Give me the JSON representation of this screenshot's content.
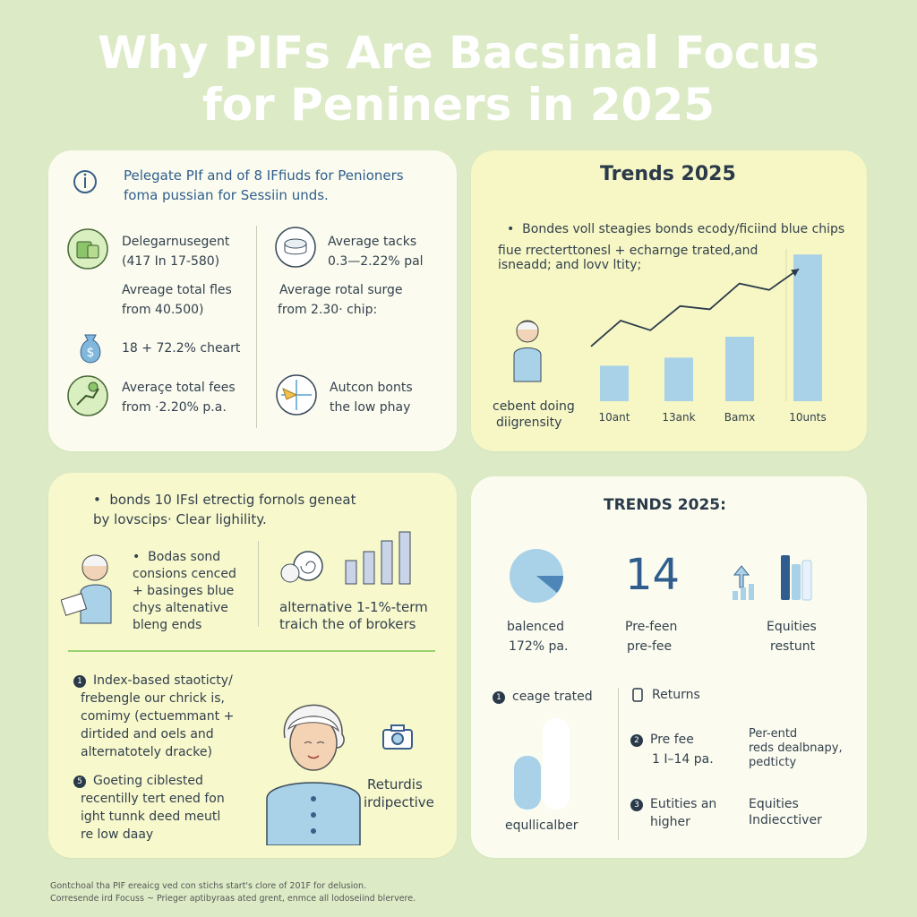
{
  "title": {
    "line1": "Why PIFs Are Bacsinal Focus",
    "line2": "for Peniners in 2025"
  },
  "card1": {
    "intro_line1": "Pelegate PIf and of 8 IFfiuds for Penioners",
    "intro_line2": "foma pussian for Sessiin unds.",
    "left": {
      "item1_line1": "Delegarnusegent",
      "item1_line2": "(417 In 17-580)",
      "item2_line1": "Avreage total fles",
      "item2_line2": "from 40.500)",
      "item3_line1": "18 + 72.2% cheart",
      "item4_line1": "Averaçe total fees",
      "item4_line2": "from ·2.20% p.a."
    },
    "right": {
      "item1_line1": "Average tacks",
      "item1_line2": "0.3—2.22% pal",
      "item2_line1": "Average rotal surge",
      "item2_line2": "from 2.30· chip:",
      "item3_line1": "Autcon bonts",
      "item3_line2": "the low phay"
    }
  },
  "card2": {
    "title": "Trends 2025",
    "bullet": "Bondes voll steagies bonds ecody/ficiind blue chips",
    "line2": "fiue rrecterttonesl +   echarnge trated,and",
    "line3": "isneadd; and lovv ltity;",
    "person_line1": "cebent doing",
    "person_line2": "diigrensity",
    "accent_color": "#a9d1e8",
    "line_color": "#2b3a4a"
  },
  "chart_data": {
    "type": "bar",
    "categories": [
      "10ant",
      "13ank",
      "Bamx",
      "10unts"
    ],
    "values": [
      22,
      27,
      40,
      91
    ],
    "ylim": [
      0,
      100
    ],
    "trend_line": [
      {
        "x": 0,
        "y": 34
      },
      {
        "x": 1,
        "y": 50
      },
      {
        "x": 2,
        "y": 44
      },
      {
        "x": 3,
        "y": 59
      },
      {
        "x": 4,
        "y": 57
      },
      {
        "x": 5,
        "y": 73
      },
      {
        "x": 6,
        "y": 69
      },
      {
        "x": 7,
        "y": 82
      }
    ]
  },
  "card3": {
    "top_line1": "bonds 10 IFsl etrectig fornols geneat",
    "top_line2": "by lovscips· Clear lighility.",
    "left_line1": "Bodas sond",
    "left_line2": "consions cenced",
    "left_line3": "+ basinges blue",
    "left_line4": "chys altenative",
    "left_line5": "bleng ends",
    "right_line1": "alternative 1-1%-term",
    "right_line2": "traich the of brokers",
    "item1_num": "1",
    "item1_line1": "Index-based staoticty/",
    "item1_line2": "frebengle our chrick is,",
    "item1_line3": "comimy (ectuemmant +",
    "item1_line4": "dirtided and oels and",
    "item1_line5": "alternatotely dracke)",
    "item2_num": "5",
    "item2_line1": "Goeting ciblested",
    "item2_line2": "recentilly tert ened fon",
    "item2_line3": "ight tunnk deed meutl",
    "item2_line4": "re low daay",
    "returns_line1": "Returdis",
    "returns_line2": "irdipective",
    "divider_color": "#9bd16e"
  },
  "card4": {
    "title": "TRENDS 2025:",
    "stat1_line1": "balenced",
    "stat1_line2": "172% pa.",
    "big_number": "14",
    "stat2_line1": "Pre-feen",
    "stat2_line2": "pre-fee",
    "stat3_line1": "Equities",
    "stat3_line2": "restunt",
    "left_head_num": "1",
    "left_head": "ceage trated",
    "left_bottom": "equllicalber",
    "right_head": "Returns",
    "row1_num": "2",
    "row1_line1": "Pre fee",
    "row1_line2": "1 I–14 pa.",
    "row1_right_line1": "Per-entd",
    "row1_right_line2": "reds dealbnapy,",
    "row1_right_line3": "pedticty",
    "row2_num": "3",
    "row2_line1": "Eutities an",
    "row2_line2": "higher",
    "row2_right_line1": "Equities",
    "row2_right_line2": "Indiecctiver"
  },
  "footer": {
    "line1": "Gontchoal tha PIF ereaicg ved con stichs start's clore of 201F for delusion.",
    "line2": "Corresende ird Focuss ~ Prieger aptibyraas ated grent, enmce all lodoseiind blervere."
  }
}
